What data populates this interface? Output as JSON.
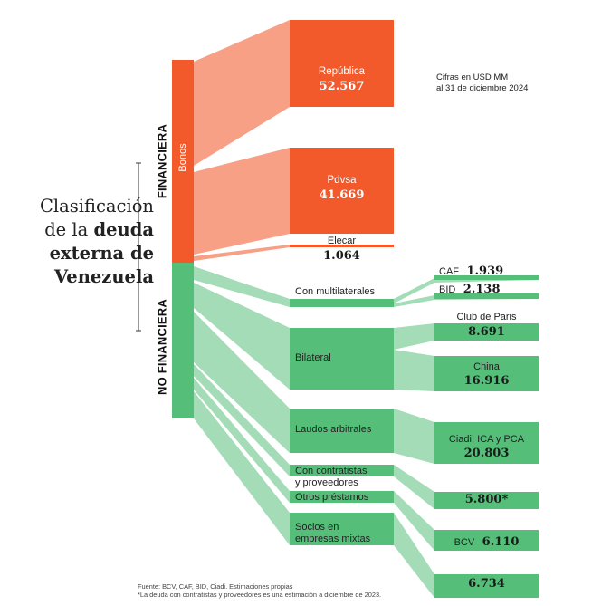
{
  "title": {
    "line1": "Clasificación",
    "line2_pre": "de la ",
    "line2_bold": "deuda",
    "line3": "externa de",
    "line4": "Venezuela"
  },
  "note": {
    "line1": "Cifras en USD MM",
    "line2": "al 31 de diciembre 2024"
  },
  "categories": {
    "financiera": "FINANCIERA",
    "no_financiera": "NO FINANCIERA",
    "bonos": "Bonos"
  },
  "nodes": {
    "republica": {
      "label": "República",
      "value": "52.567"
    },
    "pdvsa": {
      "label": "Pdvsa",
      "value": "41.669"
    },
    "elecar": {
      "label": "Elecar",
      "value": "1.064"
    },
    "multilaterales": {
      "label": "Con multilaterales"
    },
    "caf": {
      "label": "CAF",
      "value": "1.939"
    },
    "bid": {
      "label": "BID",
      "value": "2.138"
    },
    "bilateral": {
      "label": "Bilateral"
    },
    "club_paris": {
      "label": "Club de Paris",
      "value": "8.691"
    },
    "china": {
      "label": "China",
      "value": "16.916"
    },
    "laudos": {
      "label": "Laudos arbitrales"
    },
    "ciadi": {
      "label": "Ciadi, ICA y PCA",
      "value": "20.803"
    },
    "contratistas": {
      "label1": "Con contratistas",
      "label2": "y proveedores",
      "value": "5.800*"
    },
    "otros": {
      "label": "Otros préstamos"
    },
    "bcv": {
      "label": "BCV",
      "value": "6.110"
    },
    "socios": {
      "label1": "Socios en",
      "label2": "empresas mixtas",
      "value": "6.734"
    }
  },
  "footer": {
    "source": "Fuente: BCV, CAF, BID, Ciadi. Estimaciones propias",
    "asterisk": "*La deuda con contratistas y proveedores es una estimación a diciembre de 2023."
  },
  "colors": {
    "orange_dark": "#f25a2c",
    "orange_light": "#f7a086",
    "green_dark": "#55bf7a",
    "green_light": "#a3dcb6"
  }
}
